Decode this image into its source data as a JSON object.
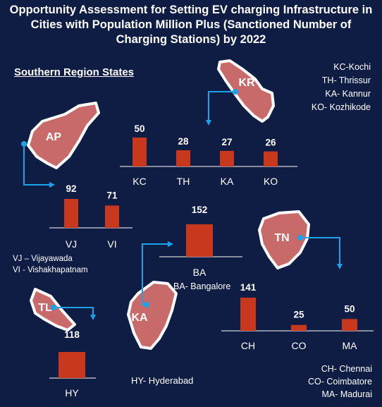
{
  "title_lines": [
    "Opportunity Assessment for Setting EV charging Infrastructure in",
    "Cities with Population Million Plus (Sanctioned Number of",
    "Charging Stations) by 2022"
  ],
  "region_label": "Southern Region States",
  "colors": {
    "background": "#0f1d44",
    "bar": "#c8381c",
    "state_shape": "#c96a6a",
    "state_outline": "#ffffff",
    "arrow": "#1aa3e8",
    "text": "#ffffff"
  },
  "chart_data": [
    {
      "type": "bar",
      "state": "KR",
      "categories": [
        "KC",
        "TH",
        "KA",
        "KO"
      ],
      "values": [
        50,
        28,
        27,
        26
      ],
      "legend": [
        "KC-Kochi",
        "TH- Thrissur",
        "KA- Kannur",
        "KO- Kozhikode"
      ]
    },
    {
      "type": "bar",
      "state": "AP",
      "categories": [
        "VJ",
        "VI"
      ],
      "values": [
        92,
        71
      ],
      "legend": [
        "VJ – Vijayawada",
        "VI - Vishakhapatnam"
      ]
    },
    {
      "type": "bar",
      "state": "KA",
      "categories": [
        "BA"
      ],
      "values": [
        152
      ],
      "legend": [
        "BA- Bangalore"
      ]
    },
    {
      "type": "bar",
      "state": "TN",
      "categories": [
        "CH",
        "CO",
        "MA"
      ],
      "values": [
        141,
        25,
        50
      ],
      "legend": [
        "CH- Chennai",
        "CO- Coimbatore",
        "MA- Madurai"
      ]
    },
    {
      "type": "bar",
      "state": "TL",
      "categories": [
        "HY"
      ],
      "values": [
        118
      ],
      "legend": [
        "HY- Hyderabad"
      ]
    }
  ]
}
